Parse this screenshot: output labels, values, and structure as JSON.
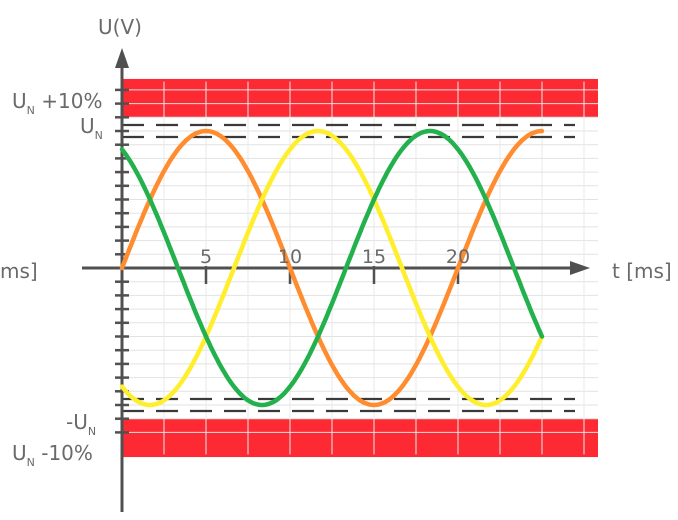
{
  "chart_data": {
    "type": "line",
    "ylabel": "U(V)",
    "xlabel_right": "t [ms]",
    "xlabel_left_cut": "ms]",
    "x_ticks": [
      "5",
      "10",
      "15",
      "20"
    ],
    "xlim": [
      0,
      25
    ],
    "ylim": [
      -1.38,
      1.38
    ],
    "grid": true,
    "nominal": {
      "label": "U",
      "sub": "N",
      "value": 1.0
    },
    "nominal_neg": {
      "label": "-U",
      "sub": "N",
      "value": -1.0
    },
    "upper_limit": {
      "label": "U",
      "sub": "N",
      "suffix": " +10%",
      "value": 1.1
    },
    "lower_limit": {
      "label": "U",
      "sub": "N",
      "suffix": " -10%",
      "value": -1.1
    },
    "bands": [
      {
        "from": 1.1,
        "to": 1.38,
        "color": "#fd2a34"
      },
      {
        "from": -1.1,
        "to": -1.38,
        "color": "#fd2a34"
      }
    ],
    "series": [
      {
        "color": "#ff8c2e",
        "period_ms": 20,
        "phase_deg": 0,
        "amplitude": 1.0,
        "x_range": [
          0,
          25
        ]
      },
      {
        "color": "#ffee2c",
        "period_ms": 20,
        "phase_deg": -120,
        "amplitude": 1.0,
        "x_range": [
          0,
          25
        ]
      },
      {
        "color": "#22b14c",
        "period_ms": 20,
        "phase_deg": 120,
        "amplitude": 1.0,
        "x_range": [
          0,
          25
        ]
      }
    ]
  }
}
